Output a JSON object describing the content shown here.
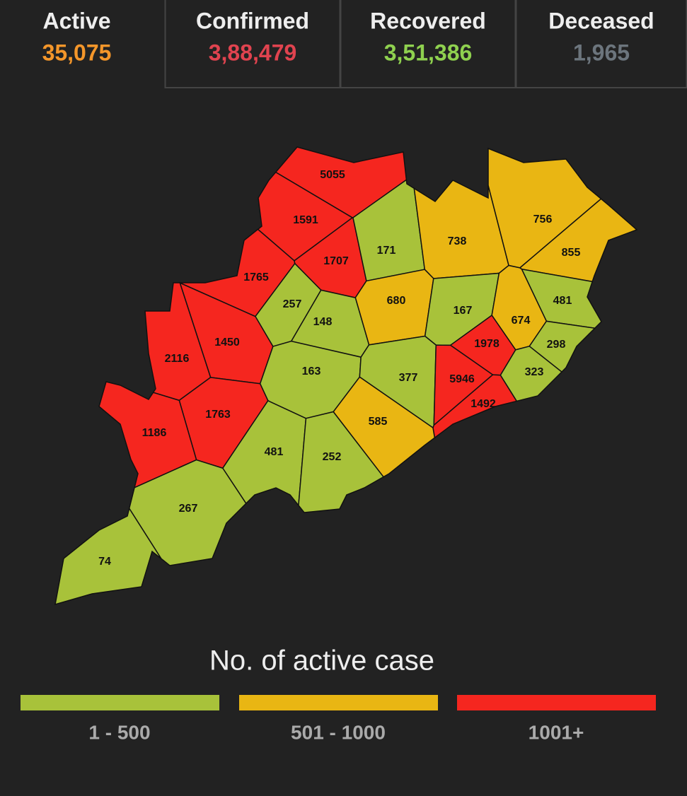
{
  "stats": [
    {
      "label": "Active",
      "value": "35,075",
      "color": "#f4962a"
    },
    {
      "label": "Confirmed",
      "value": "3,88,479",
      "color": "#e0434f"
    },
    {
      "label": "Recovered",
      "value": "3,51,386",
      "color": "#8fd14f"
    },
    {
      "label": "Deceased",
      "value": "1,965",
      "color": "#6c757d"
    }
  ],
  "map": {
    "districts": [
      {
        "label": 5055,
        "color": "#f5261f"
      },
      {
        "label": 1591,
        "color": "#f5261f"
      },
      {
        "label": 1707,
        "color": "#f5261f"
      },
      {
        "label": 171,
        "color": "#a8c23a"
      },
      {
        "label": 738,
        "color": "#e9b613"
      },
      {
        "label": 756,
        "color": "#e9b613"
      },
      {
        "label": 855,
        "color": "#e9b613"
      },
      {
        "label": 1765,
        "color": "#f5261f"
      },
      {
        "label": 257,
        "color": "#a8c23a"
      },
      {
        "label": 680,
        "color": "#e9b613"
      },
      {
        "label": 167,
        "color": "#a8c23a"
      },
      {
        "label": 481,
        "color": "#a8c23a"
      },
      {
        "label": 674,
        "color": "#e9b613"
      },
      {
        "label": 148,
        "color": "#a8c23a"
      },
      {
        "label": 1450,
        "color": "#f5261f"
      },
      {
        "label": 1978,
        "color": "#f5261f"
      },
      {
        "label": 298,
        "color": "#a8c23a"
      },
      {
        "label": 2116,
        "color": "#f5261f"
      },
      {
        "label": 163,
        "color": "#a8c23a"
      },
      {
        "label": 377,
        "color": "#a8c23a"
      },
      {
        "label": 5946,
        "color": "#f5261f"
      },
      {
        "label": 323,
        "color": "#a8c23a"
      },
      {
        "label": 1492,
        "color": "#f5261f"
      },
      {
        "label": 1763,
        "color": "#f5261f"
      },
      {
        "label": 585,
        "color": "#e9b613"
      },
      {
        "label": 1186,
        "color": "#f5261f"
      },
      {
        "label": 481,
        "color": "#a8c23a"
      },
      {
        "label": 252,
        "color": "#a8c23a"
      },
      {
        "label": 267,
        "color": "#a8c23a"
      },
      {
        "label": 74,
        "color": "#a8c23a"
      }
    ]
  },
  "legend": {
    "title": "No. of active case",
    "items": [
      {
        "label": "1 - 500",
        "color": "#a8c23a"
      },
      {
        "label": "501 - 1000",
        "color": "#e9b613"
      },
      {
        "label": "1001+",
        "color": "#f5261f"
      }
    ]
  }
}
